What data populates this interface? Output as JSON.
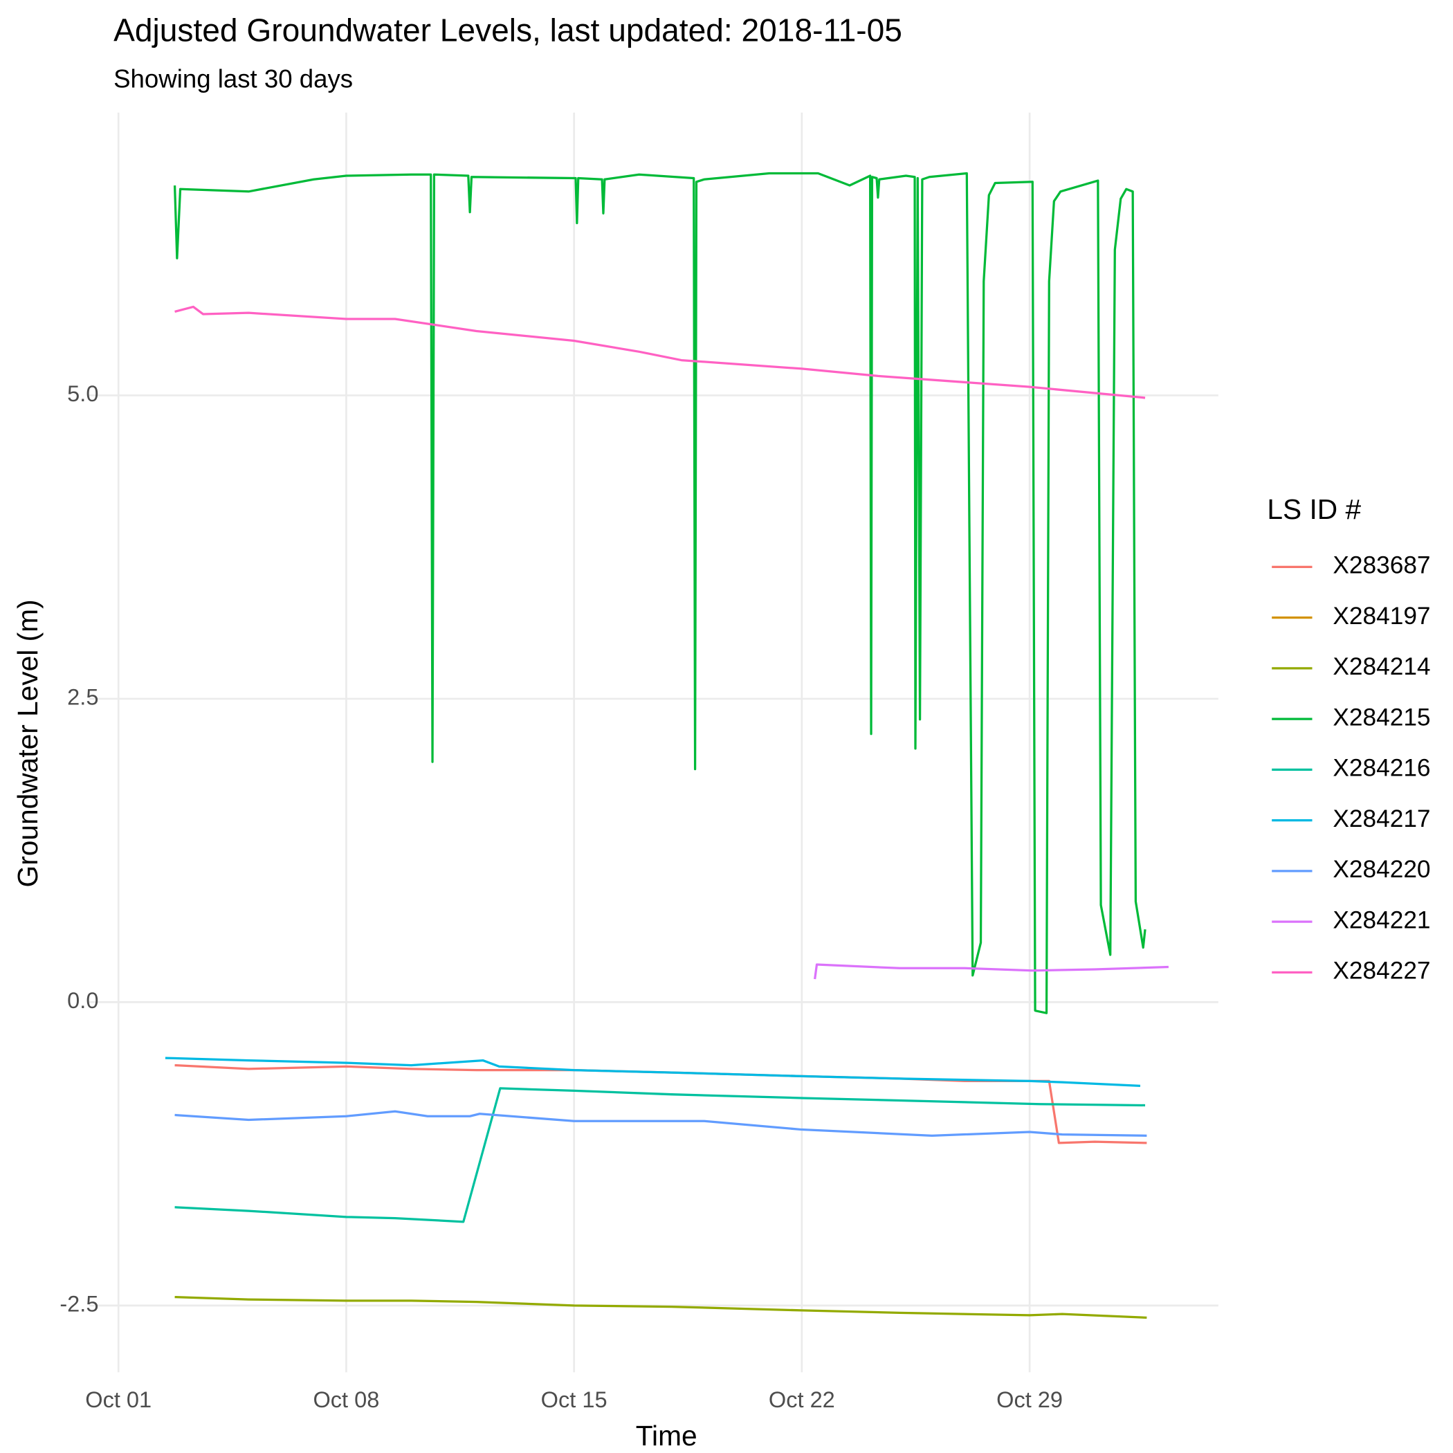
{
  "chart_data": {
    "type": "line",
    "title": "Adjusted Groundwater Levels, last updated: 2018-11-05",
    "subtitle": "Showing last 30 days",
    "x_label": "Time",
    "y_label": "Groundwater Level (m)",
    "legend_title": "LS ID #",
    "legend": "right",
    "grid": true,
    "xlim": [
      0.1,
      34.8
    ],
    "ylim": [
      -3.05,
      7.33
    ],
    "xticks": [
      {
        "value": 1,
        "label": "Oct 01"
      },
      {
        "value": 8,
        "label": "Oct 08"
      },
      {
        "value": 15,
        "label": "Oct 15"
      },
      {
        "value": 22,
        "label": "Oct 22"
      },
      {
        "value": 29,
        "label": "Oct 29"
      }
    ],
    "yticks": [
      -2.5,
      {
        "value": 0,
        "label": "0.0"
      },
      2.5,
      {
        "value": 5,
        "label": "5.0"
      }
    ],
    "series": [
      {
        "name": "X283687",
        "color": "#F8766D",
        "x": [
          2.73,
          5,
          8,
          10,
          12,
          15,
          18,
          22,
          25,
          27,
          29.6,
          29.9,
          31,
          32.6
        ],
        "values": [
          -0.52,
          -0.55,
          -0.53,
          -0.55,
          -0.56,
          -0.56,
          -0.58,
          -0.61,
          -0.63,
          -0.65,
          -0.65,
          -1.16,
          -1.15,
          -1.16
        ]
      },
      {
        "name": "X284197",
        "color": "#D39200",
        "x": [],
        "values": []
      },
      {
        "name": "X284214",
        "color": "#93AA00",
        "x": [
          2.73,
          5,
          8,
          10,
          12,
          15,
          18,
          22,
          25,
          29,
          30,
          32.6
        ],
        "values": [
          -2.43,
          -2.45,
          -2.46,
          -2.46,
          -2.47,
          -2.5,
          -2.51,
          -2.54,
          -2.56,
          -2.58,
          -2.57,
          -2.6
        ]
      },
      {
        "name": "X284215",
        "color": "#00BA38",
        "x": [
          2.73,
          2.8,
          2.9,
          5,
          7,
          8,
          9.99,
          10.6,
          10.65,
          10.7,
          11.75,
          11.8,
          11.85,
          15.05,
          15.09,
          15.13,
          15.86,
          15.9,
          15.94,
          17,
          18.68,
          18.72,
          18.76,
          19,
          21,
          22.5,
          23.47,
          24.1,
          24.13,
          24.16,
          24.3,
          24.34,
          24.38,
          25.2,
          25.47,
          25.49,
          25.56,
          25.63,
          25.7,
          25.92,
          27.07,
          27.25,
          27.5,
          27.59,
          27.75,
          27.94,
          29.09,
          29.17,
          29.52,
          29.6,
          29.75,
          29.95,
          31.1,
          31.19,
          31.48,
          31.62,
          31.8,
          31.97,
          32.17,
          32.26,
          32.49,
          32.55
        ],
        "values": [
          6.73,
          6.13,
          6.7,
          6.68,
          6.78,
          6.81,
          6.82,
          6.82,
          1.98,
          6.82,
          6.81,
          6.51,
          6.8,
          6.79,
          6.42,
          6.79,
          6.78,
          6.5,
          6.78,
          6.82,
          6.79,
          1.92,
          6.76,
          6.78,
          6.83,
          6.83,
          6.73,
          6.81,
          2.21,
          6.8,
          6.79,
          6.63,
          6.78,
          6.81,
          6.8,
          2.09,
          6.79,
          2.33,
          6.78,
          6.8,
          6.83,
          0.22,
          0.49,
          5.94,
          6.65,
          6.75,
          6.76,
          -0.07,
          -0.09,
          5.94,
          6.6,
          6.68,
          6.77,
          0.8,
          0.39,
          6.2,
          6.62,
          6.7,
          6.68,
          0.83,
          0.45,
          0.6
        ]
      },
      {
        "name": "X284216",
        "color": "#00C19F",
        "x": [
          2.73,
          5,
          8,
          9.5,
          11.6,
          12.73,
          15,
          18,
          22,
          25,
          29.3,
          32.55
        ],
        "values": [
          -1.69,
          -1.72,
          -1.77,
          -1.78,
          -1.81,
          -0.71,
          -0.73,
          -0.76,
          -0.79,
          -0.81,
          -0.84,
          -0.85
        ]
      },
      {
        "name": "X284217",
        "color": "#00B9E3",
        "x": [
          2.44,
          5,
          8,
          10,
          12.2,
          12.7,
          15,
          18,
          22,
          25,
          29,
          30,
          32.4
        ],
        "values": [
          -0.46,
          -0.48,
          -0.5,
          -0.52,
          -0.48,
          -0.53,
          -0.56,
          -0.58,
          -0.61,
          -0.63,
          -0.65,
          -0.66,
          -0.69
        ]
      },
      {
        "name": "X284220",
        "color": "#619CFF",
        "x": [
          2.73,
          5,
          8,
          9.5,
          10.5,
          11.8,
          12.1,
          15,
          19,
          22,
          26,
          29,
          30,
          32.6
        ],
        "values": [
          -0.93,
          -0.97,
          -0.94,
          -0.9,
          -0.94,
          -0.94,
          -0.92,
          -0.98,
          -0.98,
          -1.05,
          -1.1,
          -1.07,
          -1.09,
          -1.1
        ]
      },
      {
        "name": "X284221",
        "color": "#DB72FB",
        "x": [
          22.4,
          22.46,
          25,
          27,
          29.09,
          31,
          33.27
        ],
        "values": [
          0.19,
          0.31,
          0.28,
          0.28,
          0.26,
          0.27,
          0.29
        ]
      },
      {
        "name": "X284227",
        "color": "#FF61C3",
        "x": [
          2.73,
          3.3,
          3.6,
          5,
          8,
          9.5,
          12,
          15,
          17,
          18.3,
          22,
          24.34,
          29,
          32.55
        ],
        "values": [
          5.69,
          5.73,
          5.67,
          5.68,
          5.63,
          5.63,
          5.53,
          5.45,
          5.36,
          5.29,
          5.22,
          5.16,
          5.07,
          4.98
        ]
      }
    ]
  }
}
